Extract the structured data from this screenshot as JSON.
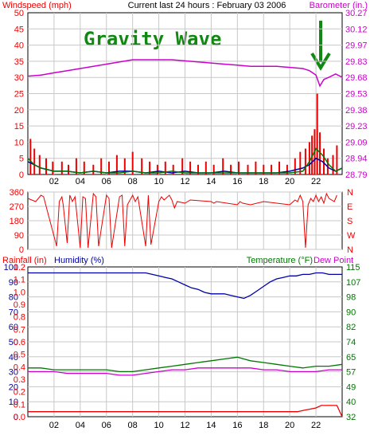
{
  "header": {
    "left_label": "Windspeed (mph)",
    "center_label": "Current last 24 hours : February 03 2006",
    "right_label": "Barometer (in.)"
  },
  "annotation": {
    "text": "Gravity Wave",
    "color": "#118811",
    "arrow_color": "#118811"
  },
  "colors": {
    "red": "#ee0000",
    "blue": "#0000aa",
    "green": "#007700",
    "magenta": "#cc00cc",
    "grid": "#c8c8c8",
    "panel_border": "#000000",
    "label_red": "#ee0000",
    "label_blue": "#0000aa",
    "label_green": "#007700",
    "label_magenta": "#cc00cc"
  },
  "chart_data": [
    {
      "id": "wind_baro",
      "type": "bar",
      "x_tick_labels": [
        "02",
        "04",
        "06",
        "08",
        "10",
        "12",
        "14",
        "16",
        "18",
        "20",
        "22"
      ],
      "x_tick_positions": [
        2,
        4,
        6,
        8,
        10,
        12,
        14,
        16,
        18,
        20,
        22
      ],
      "xlim": [
        0,
        24
      ],
      "left_axis": {
        "label": "Windspeed (mph)",
        "ticks": [
          0,
          5,
          10,
          15,
          20,
          25,
          30,
          35,
          40,
          45,
          50
        ],
        "range": [
          0,
          50
        ]
      },
      "right_axis": {
        "label": "Barometer (in.)",
        "ticks": [
          "28.79",
          "28.94",
          "29.09",
          "29.23",
          "29.38",
          "29.53",
          "29.68",
          "29.83",
          "29.97",
          "30.12",
          "30.27"
        ],
        "range": [
          28.79,
          30.27
        ]
      },
      "series": [
        {
          "key": "gust",
          "color": "red",
          "style": "bars",
          "x": [
            0.2,
            0.5,
            0.9,
            1.4,
            1.9,
            2.6,
            3.1,
            3.7,
            4.3,
            5.0,
            5.6,
            6.2,
            6.8,
            7.4,
            8.0,
            8.7,
            9.3,
            9.9,
            10.5,
            11.1,
            11.8,
            12.4,
            13.0,
            13.6,
            14.2,
            14.9,
            15.5,
            16.1,
            16.8,
            17.4,
            18.0,
            18.6,
            19.2,
            19.8,
            20.4,
            20.8,
            21.2,
            21.5,
            21.7,
            21.9,
            22.1,
            22.3,
            22.6,
            22.9,
            23.3,
            23.6
          ],
          "y": [
            11,
            8,
            6,
            5,
            4,
            4,
            3,
            5,
            4,
            3,
            5,
            4,
            6,
            5,
            7,
            5,
            4,
            3,
            4,
            3,
            5,
            4,
            3,
            4,
            3,
            5,
            3,
            4,
            3,
            4,
            3,
            3,
            4,
            3,
            5,
            7,
            8,
            10,
            12,
            14,
            25,
            13,
            8,
            5,
            6,
            9
          ]
        },
        {
          "key": "avg_wind",
          "color": "blue",
          "style": "line",
          "x": [
            0,
            1,
            2,
            3,
            4,
            5,
            6,
            7,
            8,
            9,
            10,
            11,
            12,
            13,
            14,
            15,
            16,
            17,
            18,
            19,
            20,
            21,
            21.5,
            22,
            22.5,
            23,
            23.5,
            24
          ],
          "y": [
            4,
            2,
            1,
            1,
            0.5,
            1,
            0.5,
            1,
            1,
            0.5,
            1,
            0.5,
            1,
            0.5,
            0.5,
            1,
            0.5,
            0.5,
            0.5,
            0.5,
            1,
            2,
            3,
            5,
            4,
            2,
            1,
            2
          ]
        },
        {
          "key": "wind2",
          "color": "green",
          "style": "line",
          "x": [
            0,
            0.5,
            1,
            2,
            3,
            4,
            5,
            6,
            7,
            8,
            9,
            10,
            11,
            12,
            13,
            14,
            15,
            16,
            17,
            18,
            19,
            20,
            21,
            21.5,
            22,
            22.5,
            23,
            23.5,
            24
          ],
          "y": [
            5,
            3,
            2,
            1,
            1,
            0.5,
            1,
            0.5,
            0.5,
            1,
            0.5,
            0.5,
            1,
            0.5,
            0.5,
            0.5,
            0.5,
            0.5,
            0.5,
            0.5,
            0.5,
            0.5,
            1,
            4,
            8,
            6,
            3,
            1,
            2
          ]
        },
        {
          "key": "barometer",
          "color": "magenta",
          "style": "line",
          "axis": "right",
          "x": [
            0,
            1,
            2,
            3,
            4,
            5,
            6,
            7,
            8,
            9,
            10,
            11,
            12,
            13,
            14,
            15,
            16,
            17,
            18,
            19,
            20,
            21,
            21.5,
            22,
            22.3,
            22.6,
            23,
            23.5,
            24
          ],
          "y": [
            29.69,
            29.7,
            29.72,
            29.74,
            29.76,
            29.78,
            29.8,
            29.82,
            29.84,
            29.84,
            29.84,
            29.84,
            29.83,
            29.82,
            29.81,
            29.8,
            29.79,
            29.78,
            29.78,
            29.78,
            29.77,
            29.76,
            29.74,
            29.7,
            29.6,
            29.66,
            29.68,
            29.71,
            29.68
          ]
        }
      ]
    },
    {
      "id": "wind_dir",
      "type": "line",
      "left_axis": {
        "ticks": [
          0,
          90,
          180,
          270,
          360
        ],
        "range": [
          0,
          360
        ]
      },
      "right_axis": {
        "ticks": [
          "N",
          "W",
          "S",
          "E",
          "N"
        ]
      },
      "xlim": [
        0,
        24
      ],
      "series": [
        {
          "key": "direction",
          "color": "red",
          "x": [
            0,
            0.6,
            1.0,
            1.2,
            2.2,
            2.4,
            2.6,
            2.7,
            3.0,
            3.2,
            3.4,
            3.6,
            4.0,
            4.2,
            4.4,
            4.6,
            5.0,
            5.2,
            5.4,
            6.0,
            6.2,
            6.4,
            7.0,
            7.2,
            7.4,
            7.6,
            8.0,
            8.2,
            8.4,
            9.0,
            9.2,
            9.4,
            10.0,
            10.2,
            10.4,
            10.8,
            11.0,
            11.2,
            11.4,
            12.0,
            12.4,
            14.0,
            14.2,
            14.4,
            16.0,
            16.2,
            16.4,
            17.0,
            18.0,
            19.0,
            20.0,
            20.4,
            20.6,
            20.8,
            21.0,
            21.2,
            21.4,
            21.6,
            21.8,
            22.0,
            22.2,
            22.4,
            22.6,
            22.8,
            23.0,
            23.4,
            23.6
          ],
          "y": [
            320,
            300,
            340,
            330,
            20,
            300,
            330,
            280,
            40,
            340,
            300,
            330,
            10,
            330,
            320,
            10,
            350,
            330,
            20,
            340,
            320,
            10,
            330,
            340,
            20,
            280,
            340,
            300,
            330,
            20,
            340,
            30,
            300,
            330,
            310,
            340,
            310,
            260,
            300,
            290,
            310,
            300,
            290,
            300,
            280,
            300,
            290,
            280,
            300,
            290,
            280,
            310,
            300,
            340,
            300,
            10,
            280,
            320,
            300,
            340,
            300,
            330,
            290,
            350,
            320,
            300,
            340
          ]
        }
      ]
    },
    {
      "id": "rain_hum_temp",
      "type": "line",
      "header": {
        "left_label": "Rainfall (in)",
        "center_label": "Humidity (%)",
        "right_label": "Temperature (°F)",
        "right_label2": "Dew Point"
      },
      "xlim": [
        0,
        24
      ],
      "x_tick_labels": [
        "02",
        "04",
        "06",
        "08",
        "10",
        "12",
        "14",
        "16",
        "18",
        "20",
        "22"
      ],
      "x_tick_positions": [
        2,
        4,
        6,
        8,
        10,
        12,
        14,
        16,
        18,
        20,
        22
      ],
      "left_axis_humidity": {
        "ticks": [
          0,
          10,
          20,
          30,
          40,
          50,
          60,
          70,
          80,
          90,
          100
        ],
        "range": [
          0,
          100
        ]
      },
      "left_axis_rain": {
        "ticks": [
          "0.0",
          "0.1",
          "0.2",
          "0.3",
          "0.4",
          "0.5",
          "0.6",
          "0.7",
          "0.8",
          "0.9",
          "1.0",
          "1.1",
          "1.2"
        ],
        "range": [
          0,
          1.2
        ]
      },
      "right_axis": {
        "ticks": [
          32,
          40,
          49,
          57,
          65,
          74,
          82,
          90,
          98,
          107,
          115
        ],
        "range": [
          32,
          115
        ]
      },
      "series": [
        {
          "key": "humidity",
          "color": "blue",
          "axis": "humidity",
          "x": [
            0,
            1,
            2,
            3,
            4,
            5,
            6,
            7,
            8,
            9,
            9.5,
            10,
            10.5,
            11,
            11.5,
            12,
            12.5,
            13,
            13.5,
            14,
            14.5,
            15,
            15.5,
            16,
            16.5,
            17,
            17.5,
            18,
            18.5,
            19,
            19.5,
            20,
            20.5,
            21,
            21.5,
            22,
            22.5,
            23,
            23.5,
            24
          ],
          "y": [
            96,
            96,
            96,
            96,
            96,
            96,
            96,
            96,
            96,
            96,
            95,
            94,
            93,
            92,
            90,
            88,
            86,
            85,
            83,
            82,
            82,
            82,
            81,
            80,
            79,
            81,
            84,
            87,
            90,
            92,
            93,
            94,
            94,
            95,
            95,
            96,
            96,
            95,
            95,
            95
          ]
        },
        {
          "key": "temperature",
          "color": "green",
          "axis": "right",
          "x": [
            0,
            1,
            2,
            3,
            4,
            5,
            6,
            7,
            8,
            9,
            10,
            11,
            12,
            13,
            14,
            15,
            16,
            17,
            18,
            19,
            20,
            21,
            22,
            23,
            24
          ],
          "y": [
            59,
            59,
            58,
            58,
            58,
            58,
            58,
            57,
            57,
            58,
            59,
            60,
            61,
            62,
            63,
            64,
            65,
            63,
            62,
            61,
            60,
            59,
            60,
            60,
            61
          ]
        },
        {
          "key": "dewpoint",
          "color": "magenta",
          "axis": "right",
          "x": [
            0,
            1,
            2,
            3,
            4,
            5,
            6,
            7,
            8,
            9,
            10,
            11,
            12,
            13,
            14,
            15,
            16,
            17,
            18,
            19,
            20,
            21,
            22,
            23,
            24
          ],
          "y": [
            57,
            57,
            57,
            56,
            56,
            56,
            56,
            55,
            55,
            56,
            57,
            58,
            58,
            59,
            59,
            59,
            59,
            59,
            58,
            58,
            57,
            57,
            57,
            58,
            58
          ]
        },
        {
          "key": "rainfall",
          "color": "red",
          "axis": "rain",
          "x": [
            0,
            20.6,
            21.0,
            21.5,
            22.0,
            22.4,
            22.5,
            23.0,
            23.6,
            24
          ],
          "y": [
            0.04,
            0.04,
            0.05,
            0.06,
            0.07,
            0.09,
            0.09,
            0.09,
            0.09,
            0.0
          ]
        }
      ]
    }
  ]
}
